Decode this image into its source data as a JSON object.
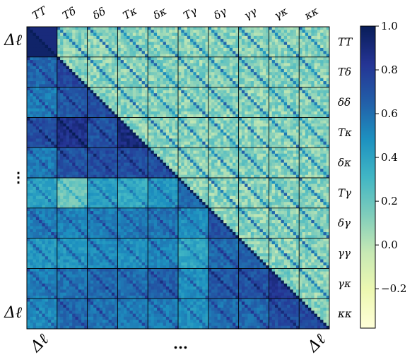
{
  "chart_data": {
    "type": "heatmap",
    "title": "",
    "blocks": [
      "TT",
      "Tδ",
      "δδ",
      "Tκ",
      "δκ",
      "Tγ",
      "δγ",
      "γγ",
      "γκ",
      "κκ"
    ],
    "bins_per_block": 10,
    "block_labels_top": [
      "TT",
      "Tδ",
      "δδ",
      "Tκ",
      "δκ",
      "Tγ",
      "δγ",
      "γγ",
      "γκ",
      "κκ"
    ],
    "block_labels_right": [
      "TT",
      "Tδ",
      "δδ",
      "Tκ",
      "δκ",
      "Tγ",
      "δγ",
      "γγ",
      "γκ",
      "κκ"
    ],
    "left_labels": {
      "top": "Δℓ",
      "middle": "⋮",
      "bottom": "Δℓ"
    },
    "bottom_labels": {
      "left": "Δℓ",
      "middle": "...",
      "right": "Δℓ"
    },
    "lower_block_levels": [
      [
        1.0
      ],
      [
        0.62,
        0.75
      ],
      [
        0.55,
        0.68,
        0.72
      ],
      [
        0.72,
        0.85,
        0.7,
        0.9
      ],
      [
        0.55,
        0.7,
        0.72,
        0.72,
        0.72
      ],
      [
        0.4,
        0.18,
        0.42,
        0.36,
        0.45,
        0.62
      ],
      [
        0.55,
        0.52,
        0.55,
        0.55,
        0.58,
        0.48,
        0.72
      ],
      [
        0.45,
        0.45,
        0.5,
        0.48,
        0.52,
        0.38,
        0.62,
        0.65
      ],
      [
        0.55,
        0.58,
        0.62,
        0.6,
        0.65,
        0.48,
        0.68,
        0.7,
        0.82
      ],
      [
        0.5,
        0.62,
        0.58,
        0.55,
        0.55,
        0.48,
        0.6,
        0.62,
        0.72,
        0.75
      ]
    ],
    "upper_level": 0.12,
    "upper_block_diagonal": 0.55,
    "diagonal": 1.0,
    "colorbar": {
      "min": -0.38,
      "max": 1.0,
      "ticks": [
        "1.0",
        "0.8",
        "0.6",
        "0.4",
        "0.2",
        "0.0",
        "−0.2"
      ],
      "tick_values": [
        1.0,
        0.8,
        0.6,
        0.4,
        0.2,
        0.0,
        -0.2
      ],
      "colormap": "YlGnBu",
      "stops": [
        "#ffffd9",
        "#edf8b1",
        "#c7e9b4",
        "#7fcdbb",
        "#41b6c4",
        "#1d91c0",
        "#225ea8",
        "#253494",
        "#081d58"
      ]
    },
    "grid_line_color": "#000000"
  }
}
